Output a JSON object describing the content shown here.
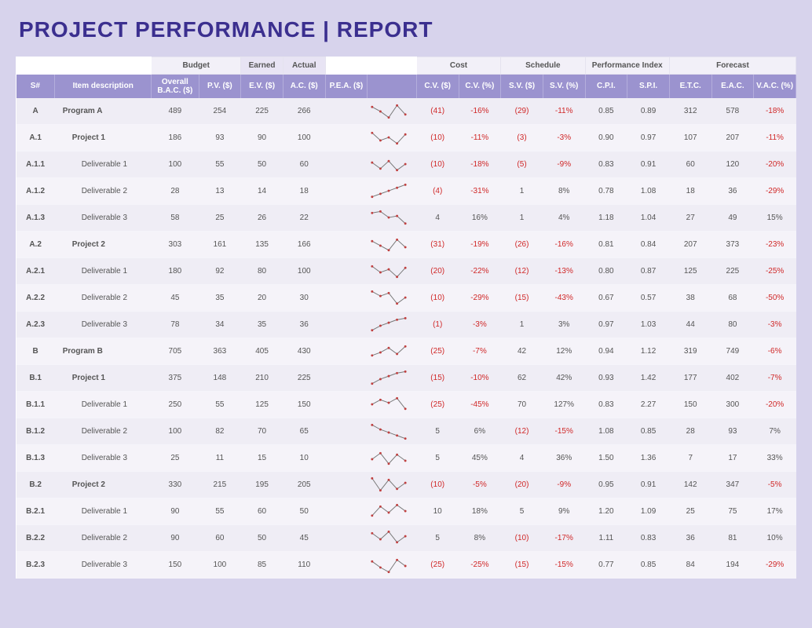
{
  "title": "PROJECT PERFORMANCE  |  REPORT",
  "colors": {
    "page_bg": "#d7d3ec",
    "title_color": "#3b2f8f",
    "header_bg": "#9b93cf",
    "group_bg": "#f2f0f8",
    "row_odd_bg": "#efedf5",
    "row_even_bg": "#f5f3f9",
    "negative": "#d02828",
    "spark_line": "#777777",
    "spark_point": "#c04040"
  },
  "fonts": {
    "title_size_pt": 21,
    "title_weight": 800,
    "header_size_pt": 7.5,
    "body_size_pt": 7.5
  },
  "table": {
    "type": "table",
    "groups": [
      {
        "label": "",
        "span": 2
      },
      {
        "label": "Budget",
        "span": 2
      },
      {
        "label": "Earned",
        "span": 1,
        "solo": true
      },
      {
        "label": "Actual",
        "span": 1,
        "solo": true
      },
      {
        "label": "",
        "span": 2
      },
      {
        "label": "Cost",
        "span": 2
      },
      {
        "label": "Schedule",
        "span": 2
      },
      {
        "label": "Performance Index",
        "span": 2
      },
      {
        "label": "Forecast",
        "span": 3
      }
    ],
    "columns": [
      {
        "key": "sn",
        "label": "S#"
      },
      {
        "key": "desc",
        "label": "Item description"
      },
      {
        "key": "bac",
        "label": "Overall B.A.C. ($)"
      },
      {
        "key": "pv",
        "label": "P.V. ($)"
      },
      {
        "key": "ev",
        "label": "E.V. ($)"
      },
      {
        "key": "ac",
        "label": "A.C. ($)"
      },
      {
        "key": "pea",
        "label": "P.E.A. ($)"
      },
      {
        "key": "spark",
        "label": ""
      },
      {
        "key": "cv",
        "label": "C.V. ($)"
      },
      {
        "key": "cvp",
        "label": "C.V. (%)"
      },
      {
        "key": "sv",
        "label": "S.V. ($)"
      },
      {
        "key": "svp",
        "label": "S.V. (%)"
      },
      {
        "key": "cpi",
        "label": "C.P.I."
      },
      {
        "key": "spi",
        "label": "S.P.I."
      },
      {
        "key": "etc",
        "label": "E.T.C."
      },
      {
        "key": "eac",
        "label": "E.A.C."
      },
      {
        "key": "vac",
        "label": "V.A.C. (%)"
      }
    ],
    "rows": [
      {
        "sn": "A",
        "desc": "Program A",
        "lvl": 1,
        "bac": 489,
        "pv": 254,
        "ev": 225,
        "ac": 266,
        "spark": [
          8,
          14,
          22,
          6,
          18
        ],
        "cv": "(41)",
        "cv_neg": true,
        "cvp": "-16%",
        "cvp_neg": true,
        "sv": "(29)",
        "sv_neg": true,
        "svp": "-11%",
        "svp_neg": true,
        "cpi": "0.85",
        "spi": "0.89",
        "etc": 312,
        "eac": 578,
        "vac": "-18%",
        "vac_neg": true
      },
      {
        "sn": "A.1",
        "desc": "Project 1",
        "lvl": 2,
        "bac": 186,
        "pv": 93,
        "ev": 90,
        "ac": 100,
        "spark": [
          6,
          16,
          12,
          20,
          8
        ],
        "cv": "(10)",
        "cv_neg": true,
        "cvp": "-11%",
        "cvp_neg": true,
        "sv": "(3)",
        "sv_neg": true,
        "svp": "-3%",
        "svp_neg": true,
        "cpi": "0.90",
        "spi": "0.97",
        "etc": 107,
        "eac": 207,
        "vac": "-11%",
        "vac_neg": true
      },
      {
        "sn": "A.1.1",
        "desc": "Deliverable 1",
        "lvl": 3,
        "bac": 100,
        "pv": 55,
        "ev": 50,
        "ac": 60,
        "spark": [
          10,
          18,
          8,
          20,
          12
        ],
        "cv": "(10)",
        "cv_neg": true,
        "cvp": "-18%",
        "cvp_neg": true,
        "sv": "(5)",
        "sv_neg": true,
        "svp": "-9%",
        "svp_neg": true,
        "cpi": "0.83",
        "spi": "0.91",
        "etc": 60,
        "eac": 120,
        "vac": "-20%",
        "vac_neg": true
      },
      {
        "sn": "A.1.2",
        "desc": "Deliverable 2",
        "lvl": 3,
        "bac": 28,
        "pv": 13,
        "ev": 14,
        "ac": 18,
        "spark": [
          20,
          16,
          12,
          8,
          4
        ],
        "cv": "(4)",
        "cv_neg": true,
        "cvp": "-31%",
        "cvp_neg": true,
        "sv": "1",
        "svp": "8%",
        "cpi": "0.78",
        "spi": "1.08",
        "etc": 18,
        "eac": 36,
        "vac": "-29%",
        "vac_neg": true
      },
      {
        "sn": "A.1.3",
        "desc": "Deliverable 3",
        "lvl": 3,
        "bac": 58,
        "pv": 25,
        "ev": 26,
        "ac": 22,
        "spark": [
          6,
          4,
          12,
          10,
          20
        ],
        "cv": "4",
        "cvp": "16%",
        "sv": "1",
        "svp": "4%",
        "cpi": "1.18",
        "spi": "1.04",
        "etc": 27,
        "eac": 49,
        "vac": "15%"
      },
      {
        "sn": "A.2",
        "desc": "Project 2",
        "lvl": 2,
        "bac": 303,
        "pv": 161,
        "ev": 135,
        "ac": 166,
        "spark": [
          8,
          14,
          20,
          6,
          16
        ],
        "cv": "(31)",
        "cv_neg": true,
        "cvp": "-19%",
        "cvp_neg": true,
        "sv": "(26)",
        "sv_neg": true,
        "svp": "-16%",
        "svp_neg": true,
        "cpi": "0.81",
        "spi": "0.84",
        "etc": 207,
        "eac": 373,
        "vac": "-23%",
        "vac_neg": true
      },
      {
        "sn": "A.2.1",
        "desc": "Deliverable 1",
        "lvl": 3,
        "bac": 180,
        "pv": 92,
        "ev": 80,
        "ac": 100,
        "spark": [
          6,
          14,
          10,
          20,
          8
        ],
        "cv": "(20)",
        "cv_neg": true,
        "cvp": "-22%",
        "cvp_neg": true,
        "sv": "(12)",
        "sv_neg": true,
        "svp": "-13%",
        "svp_neg": true,
        "cpi": "0.80",
        "spi": "0.87",
        "etc": 125,
        "eac": 225,
        "vac": "-25%",
        "vac_neg": true
      },
      {
        "sn": "A.2.2",
        "desc": "Deliverable 2",
        "lvl": 3,
        "bac": 45,
        "pv": 35,
        "ev": 20,
        "ac": 30,
        "spark": [
          4,
          10,
          6,
          20,
          12
        ],
        "cv": "(10)",
        "cv_neg": true,
        "cvp": "-29%",
        "cvp_neg": true,
        "sv": "(15)",
        "sv_neg": true,
        "svp": "-43%",
        "svp_neg": true,
        "cpi": "0.67",
        "spi": "0.57",
        "etc": 38,
        "eac": 68,
        "vac": "-50%",
        "vac_neg": true
      },
      {
        "sn": "A.2.3",
        "desc": "Deliverable 3",
        "lvl": 3,
        "bac": 78,
        "pv": 34,
        "ev": 35,
        "ac": 36,
        "spark": [
          20,
          14,
          10,
          6,
          4
        ],
        "cv": "(1)",
        "cv_neg": true,
        "cvp": "-3%",
        "cvp_neg": true,
        "sv": "1",
        "svp": "3%",
        "cpi": "0.97",
        "spi": "1.03",
        "etc": 44,
        "eac": 80,
        "vac": "-3%",
        "vac_neg": true
      },
      {
        "sn": "B",
        "desc": "Program B",
        "lvl": 1,
        "bac": 705,
        "pv": 363,
        "ev": 405,
        "ac": 430,
        "spark": [
          18,
          14,
          8,
          16,
          6
        ],
        "cv": "(25)",
        "cv_neg": true,
        "cvp": "-7%",
        "cvp_neg": true,
        "sv": "42",
        "svp": "12%",
        "cpi": "0.94",
        "spi": "1.12",
        "etc": 319,
        "eac": 749,
        "vac": "-6%",
        "vac_neg": true
      },
      {
        "sn": "B.1",
        "desc": "Project 1",
        "lvl": 2,
        "bac": 375,
        "pv": 148,
        "ev": 210,
        "ac": 225,
        "spark": [
          20,
          14,
          10,
          6,
          4
        ],
        "cv": "(15)",
        "cv_neg": true,
        "cvp": "-10%",
        "cvp_neg": true,
        "sv": "62",
        "svp": "42%",
        "cpi": "0.93",
        "spi": "1.42",
        "etc": 177,
        "eac": 402,
        "vac": "-7%",
        "vac_neg": true
      },
      {
        "sn": "B.1.1",
        "desc": "Deliverable 1",
        "lvl": 3,
        "bac": 250,
        "pv": 55,
        "ev": 125,
        "ac": 150,
        "spark": [
          12,
          6,
          10,
          4,
          18
        ],
        "cv": "(25)",
        "cv_neg": true,
        "cvp": "-45%",
        "cvp_neg": true,
        "sv": "70",
        "svp": "127%",
        "cpi": "0.83",
        "spi": "2.27",
        "etc": 150,
        "eac": 300,
        "vac": "-20%",
        "vac_neg": true
      },
      {
        "sn": "B.1.2",
        "desc": "Deliverable 2",
        "lvl": 3,
        "bac": 100,
        "pv": 82,
        "ev": 70,
        "ac": 65,
        "spark": [
          4,
          10,
          14,
          18,
          22
        ],
        "cv": "5",
        "cvp": "6%",
        "sv": "(12)",
        "sv_neg": true,
        "svp": "-15%",
        "svp_neg": true,
        "cpi": "1.08",
        "spi": "0.85",
        "etc": 28,
        "eac": 93,
        "vac": "7%"
      },
      {
        "sn": "B.1.3",
        "desc": "Deliverable 3",
        "lvl": 3,
        "bac": 25,
        "pv": 11,
        "ev": 15,
        "ac": 10,
        "spark": [
          14,
          6,
          20,
          8,
          16
        ],
        "cv": "5",
        "cvp": "45%",
        "sv": "4",
        "svp": "36%",
        "cpi": "1.50",
        "spi": "1.36",
        "etc": 7,
        "eac": 17,
        "vac": "33%"
      },
      {
        "sn": "B.2",
        "desc": "Project 2",
        "lvl": 2,
        "bac": 330,
        "pv": 215,
        "ev": 195,
        "ac": 205,
        "spark": [
          4,
          20,
          6,
          18,
          10
        ],
        "cv": "(10)",
        "cv_neg": true,
        "cvp": "-5%",
        "cvp_neg": true,
        "sv": "(20)",
        "sv_neg": true,
        "svp": "-9%",
        "svp_neg": true,
        "cpi": "0.95",
        "spi": "0.91",
        "etc": 142,
        "eac": 347,
        "vac": "-5%",
        "vac_neg": true
      },
      {
        "sn": "B.2.1",
        "desc": "Deliverable 1",
        "lvl": 3,
        "bac": 90,
        "pv": 55,
        "ev": 60,
        "ac": 50,
        "spark": [
          18,
          6,
          14,
          4,
          12
        ],
        "cv": "10",
        "cvp": "18%",
        "sv": "5",
        "svp": "9%",
        "cpi": "1.20",
        "spi": "1.09",
        "etc": 25,
        "eac": 75,
        "vac": "17%"
      },
      {
        "sn": "B.2.2",
        "desc": "Deliverable 2",
        "lvl": 3,
        "bac": 90,
        "pv": 60,
        "ev": 50,
        "ac": 45,
        "spark": [
          6,
          14,
          4,
          18,
          10
        ],
        "cv": "5",
        "cvp": "8%",
        "sv": "(10)",
        "sv_neg": true,
        "svp": "-17%",
        "svp_neg": true,
        "cpi": "1.11",
        "spi": "0.83",
        "etc": 36,
        "eac": 81,
        "vac": "10%"
      },
      {
        "sn": "B.2.3",
        "desc": "Deliverable 3",
        "lvl": 3,
        "bac": 150,
        "pv": 100,
        "ev": 85,
        "ac": 110,
        "spark": [
          8,
          16,
          22,
          6,
          14
        ],
        "cv": "(25)",
        "cv_neg": true,
        "cvp": "-25%",
        "cvp_neg": true,
        "sv": "(15)",
        "sv_neg": true,
        "svp": "-15%",
        "svp_neg": true,
        "cpi": "0.77",
        "spi": "0.85",
        "etc": 84,
        "eac": 194,
        "vac": "-29%",
        "vac_neg": true
      }
    ]
  }
}
